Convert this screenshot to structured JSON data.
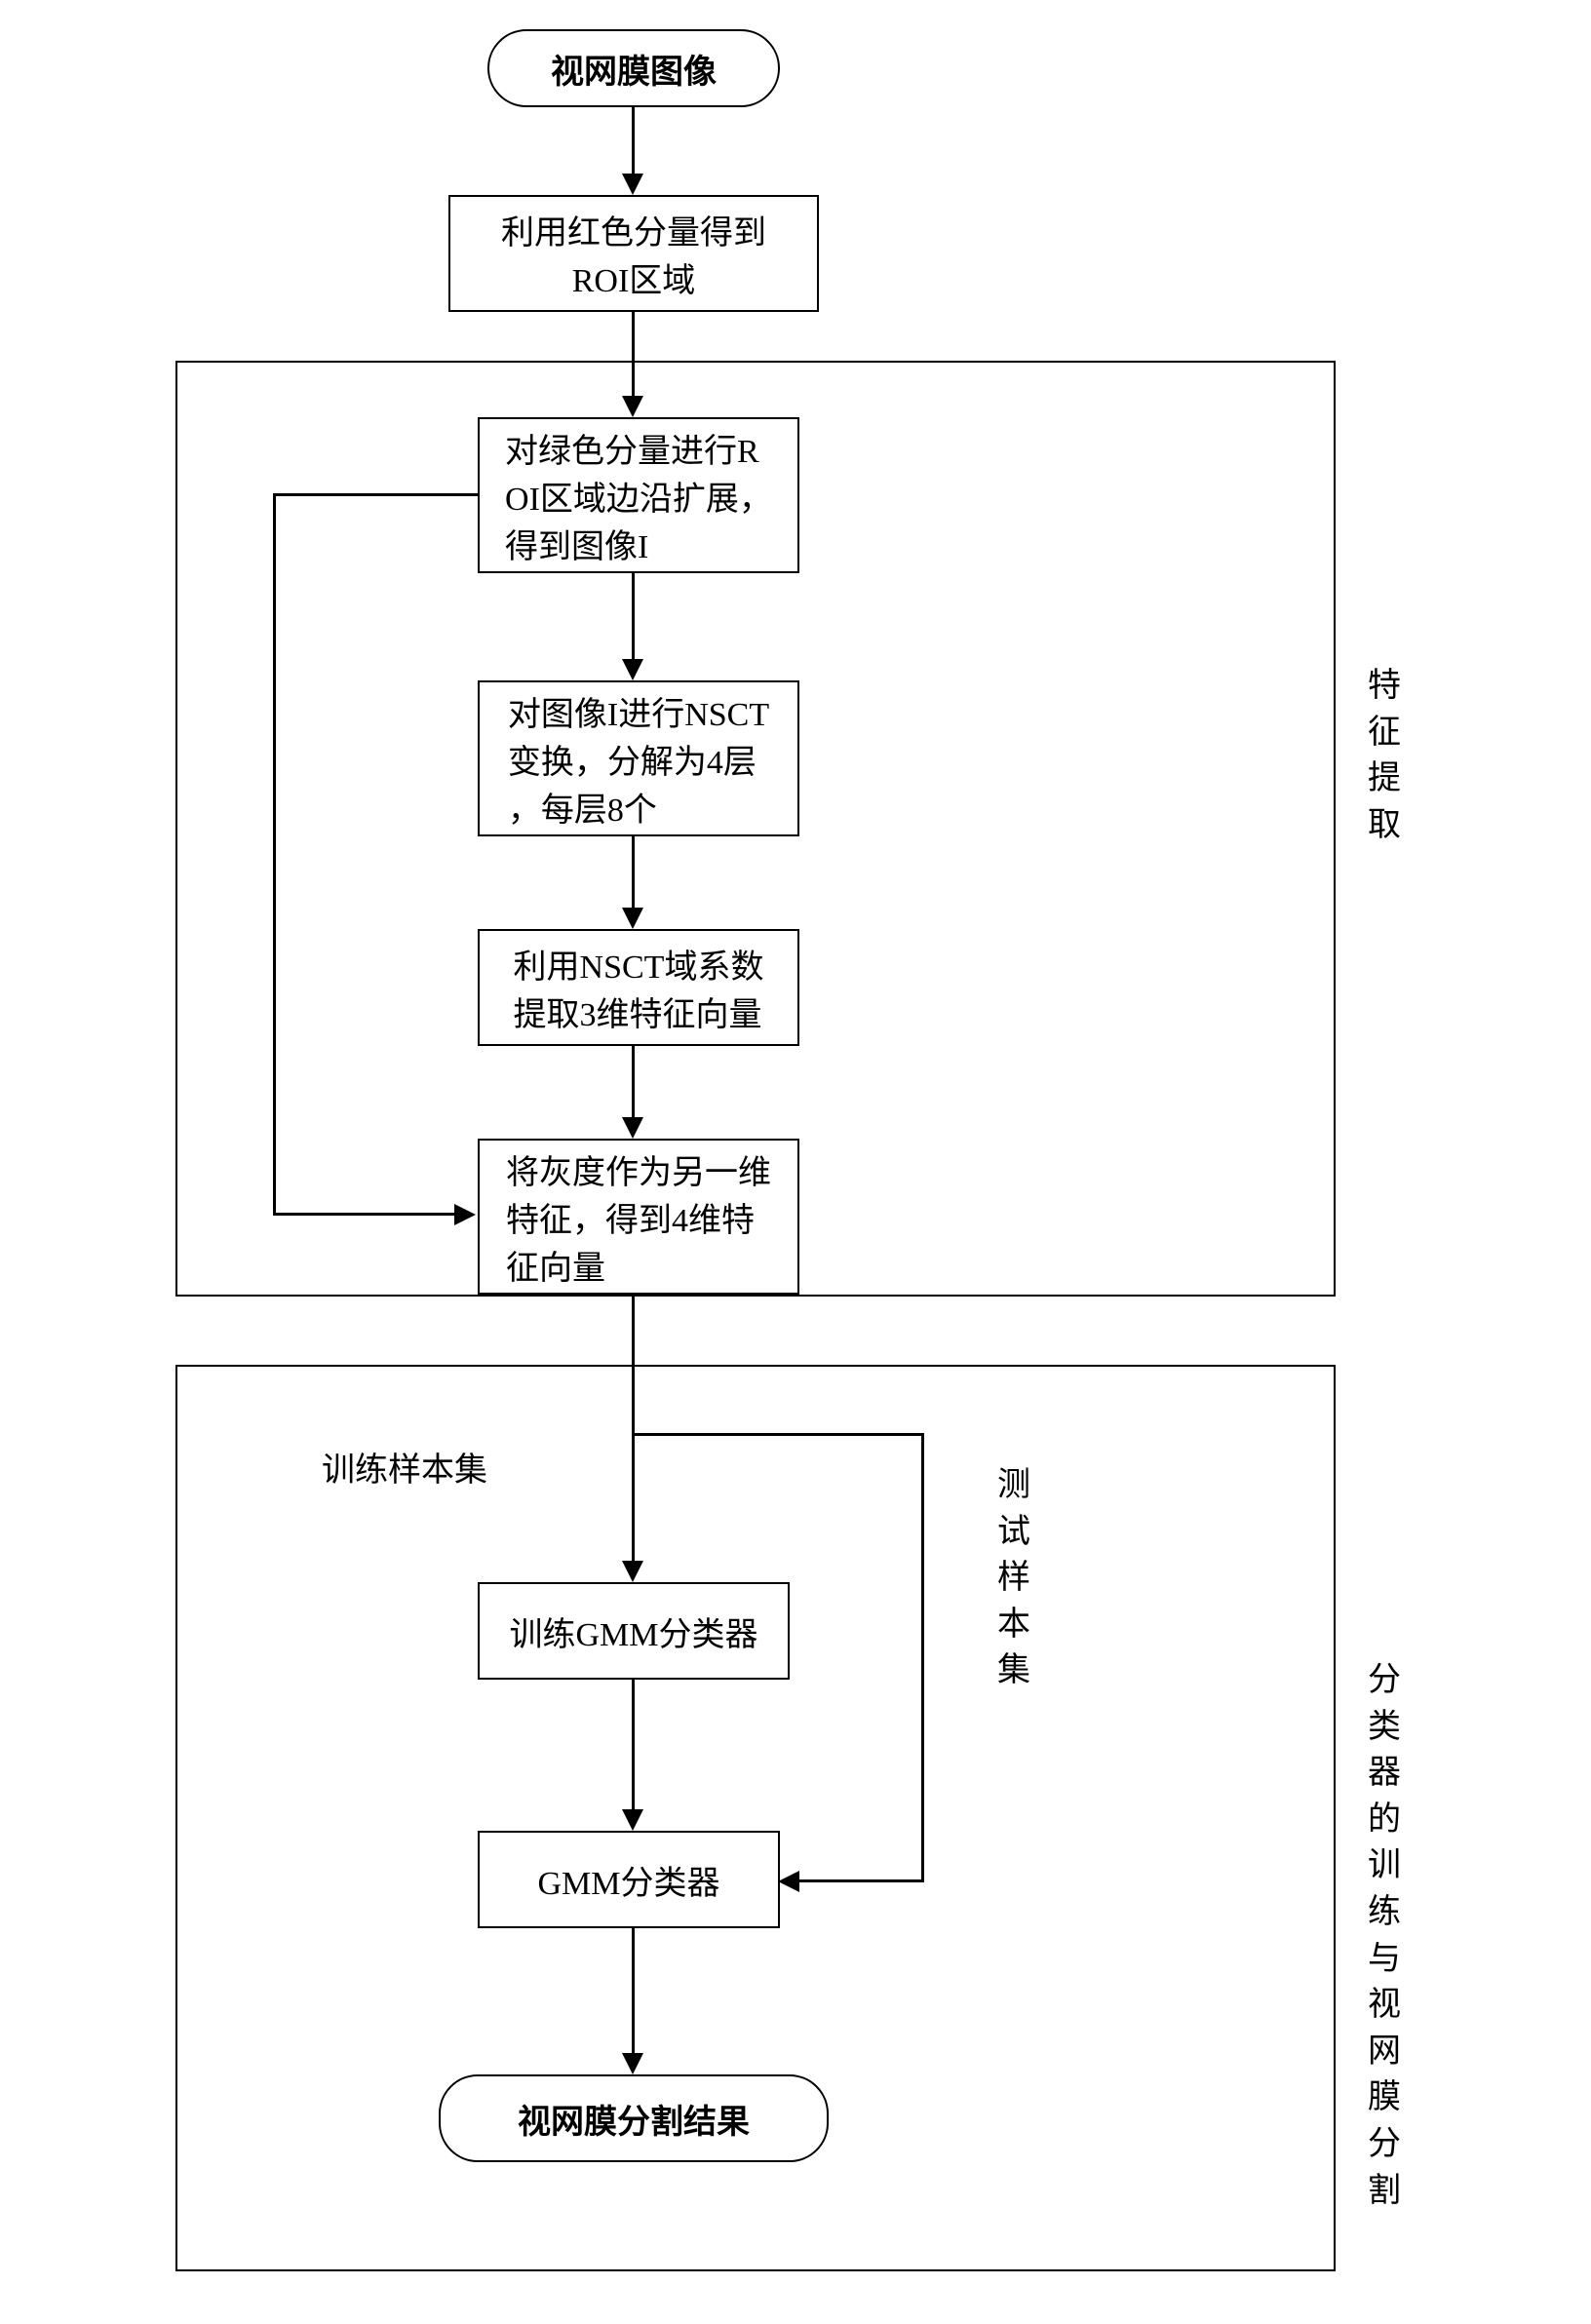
{
  "type": "flowchart",
  "background_color": "#ffffff",
  "border_color": "#000000",
  "font_family": "SimSun",
  "nodes": {
    "start": {
      "label": "视网膜图像",
      "shape": "rounded"
    },
    "roi": {
      "label": "利用红色分量得到\nROI区域",
      "shape": "rect"
    },
    "step1": {
      "label": "对绿色分量进行R\nOI区域边沿扩展，\n得到图像I",
      "shape": "rect"
    },
    "step2": {
      "label": "对图像I进行NSCT\n变换，分解为4层\n，每层8个",
      "shape": "rect"
    },
    "step3": {
      "label": "利用NSCT域系数\n提取3维特征向量",
      "shape": "rect"
    },
    "step4": {
      "label": "将灰度作为另一维\n特征，得到4维特\n征向量",
      "shape": "rect"
    },
    "train": {
      "label": "训练GMM分类器",
      "shape": "rect"
    },
    "gmm": {
      "label": "GMM分类器",
      "shape": "rect"
    },
    "end": {
      "label": "视网膜分割结果",
      "shape": "rounded"
    }
  },
  "labels": {
    "section1": "特征提取",
    "section2": "分类器的训练与视网膜分割",
    "train_set": "训练样本集",
    "test_set": "测试样本集"
  },
  "style": {
    "node_fontsize": 34,
    "label_fontsize": 34,
    "line_width": 3,
    "arrow_size": 22
  }
}
